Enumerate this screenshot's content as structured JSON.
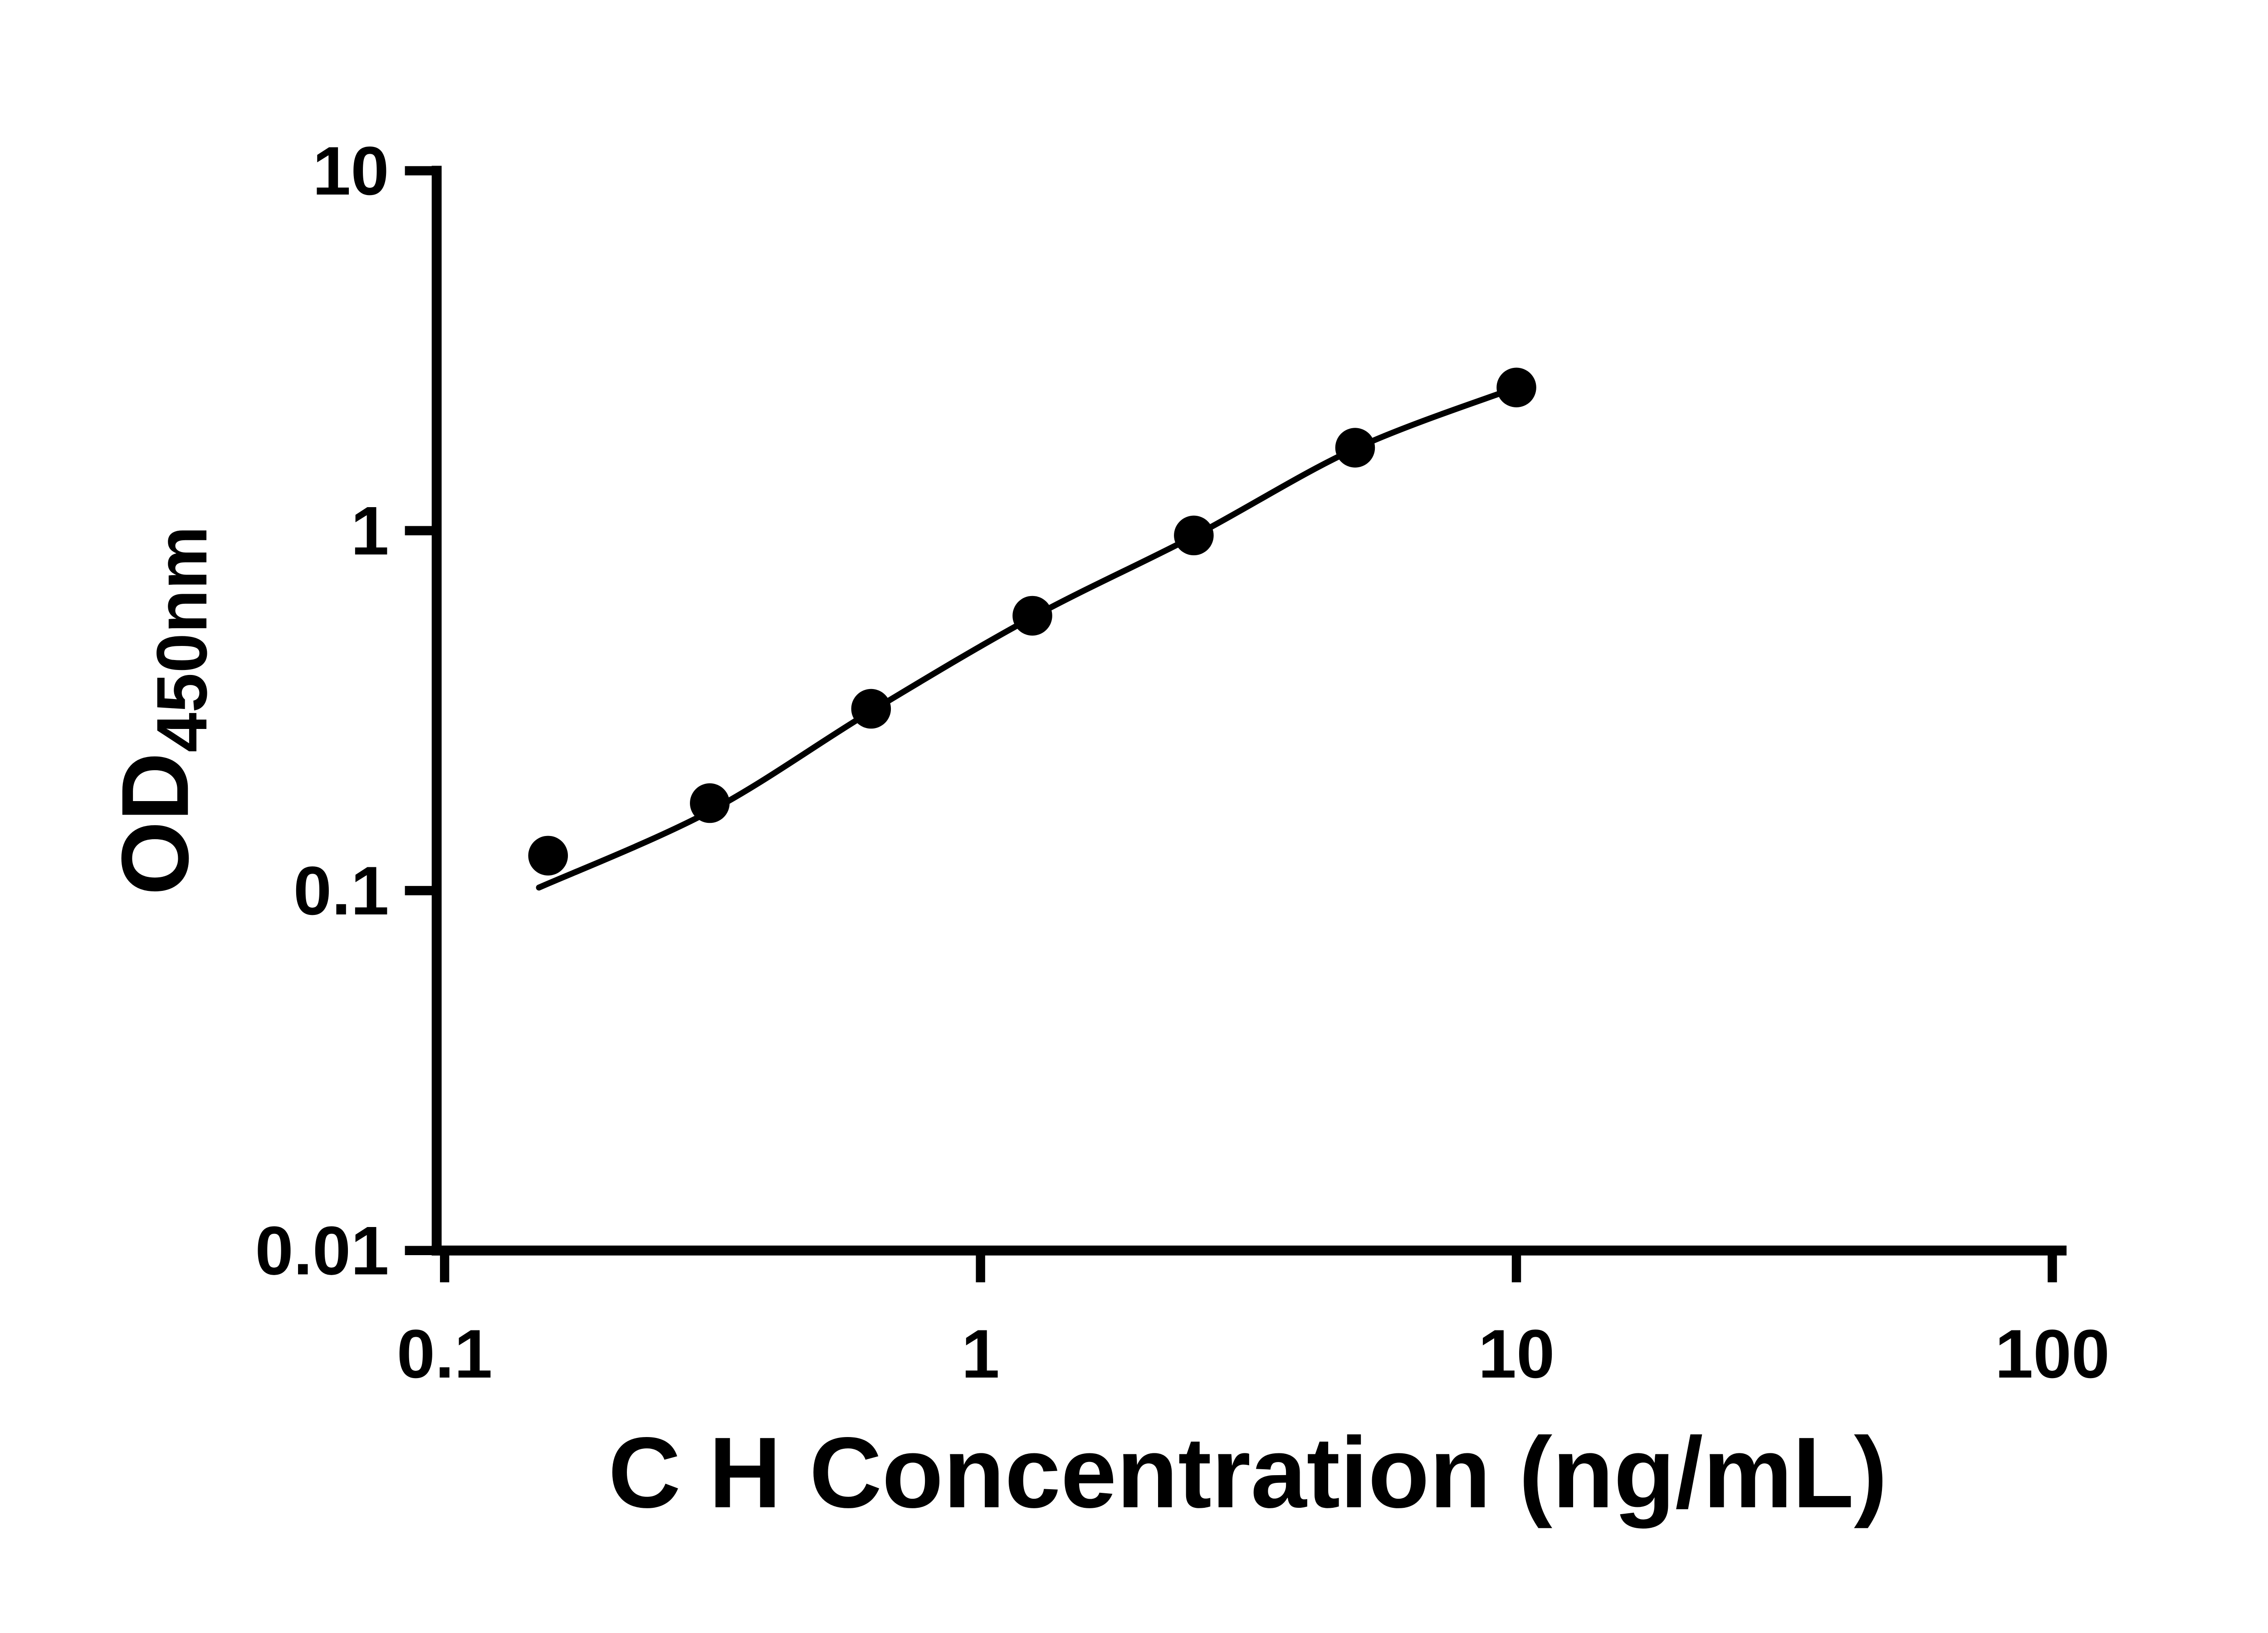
{
  "chart_data": {
    "type": "scatter",
    "title": "",
    "xlabel": "C H Concentration (ng/mL)",
    "ylabel_main": "OD",
    "ylabel_sub": "450nm",
    "x_scale": "log",
    "y_scale": "log",
    "xlim": [
      0.1,
      100
    ],
    "ylim": [
      0.01,
      10
    ],
    "x_ticks": [
      {
        "value": 0.1,
        "label": "0.1"
      },
      {
        "value": 1,
        "label": "1"
      },
      {
        "value": 10,
        "label": "10"
      },
      {
        "value": 100,
        "label": "100"
      }
    ],
    "y_ticks": [
      {
        "value": 0.01,
        "label": "0.01"
      },
      {
        "value": 0.1,
        "label": "0.1"
      },
      {
        "value": 1,
        "label": "1"
      },
      {
        "value": 10,
        "label": "10"
      }
    ],
    "points": {
      "x": [
        0.156,
        0.3125,
        0.625,
        1.25,
        2.5,
        5,
        10
      ],
      "y": [
        0.125,
        0.175,
        0.32,
        0.58,
        0.97,
        1.7,
        2.5
      ]
    },
    "fit_curve": {
      "x": [
        0.15,
        0.3125,
        0.625,
        1.25,
        2.5,
        5,
        10
      ],
      "y": [
        0.102,
        0.166,
        0.315,
        0.575,
        0.965,
        1.69,
        2.5
      ]
    },
    "marker_color": "#000000",
    "line_color": "#000000",
    "axis_color": "#000000",
    "grid": false,
    "legend": "none",
    "background": "#ffffff"
  }
}
